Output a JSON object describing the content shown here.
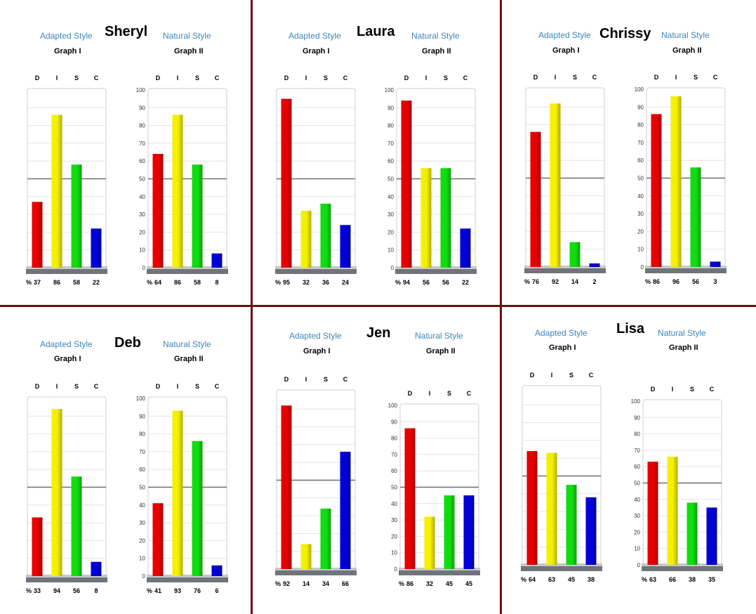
{
  "labels": {
    "adapted": "Adapted Style",
    "natural": "Natural Style",
    "graph1": "Graph I",
    "graph2": "Graph II",
    "percent": "%"
  },
  "colors": {
    "D": "#e80000",
    "I": "#f5ef00",
    "S": "#10dd10",
    "C": "#0000d8",
    "accent": "#3d86b8",
    "divider": "#6b0f0f"
  },
  "panels": [
    {
      "name": "Sheryl"
    },
    {
      "name": "Laura"
    },
    {
      "name": "Chrissy"
    },
    {
      "name": "Deb"
    },
    {
      "name": "Jen"
    },
    {
      "name": "Lisa"
    }
  ],
  "chart_data": [
    {
      "type": "bar",
      "person": "Sheryl",
      "title": "Adapted Style",
      "subtitle": "Graph I",
      "categories": [
        "D",
        "I",
        "S",
        "C"
      ],
      "values": [
        37,
        86,
        58,
        22
      ],
      "ylim": [
        0,
        100
      ],
      "midline": 50,
      "yticks_shown": false
    },
    {
      "type": "bar",
      "person": "Sheryl",
      "title": "Natural Style",
      "subtitle": "Graph II",
      "categories": [
        "D",
        "I",
        "S",
        "C"
      ],
      "values": [
        64,
        86,
        58,
        8
      ],
      "ylim": [
        0,
        100
      ],
      "midline": 50,
      "yticks_shown": true,
      "yticks": [
        "0",
        "10",
        "20",
        "30",
        "40",
        "50",
        "60",
        "70",
        "80",
        "90",
        "100"
      ]
    },
    {
      "type": "bar",
      "person": "Laura",
      "title": "Adapted Style",
      "subtitle": "Graph I",
      "categories": [
        "D",
        "I",
        "S",
        "C"
      ],
      "values": [
        95,
        32,
        36,
        24
      ],
      "ylim": [
        0,
        100
      ],
      "midline": 50,
      "yticks_shown": false
    },
    {
      "type": "bar",
      "person": "Laura",
      "title": "Natural Style",
      "subtitle": "Graph II",
      "categories": [
        "D",
        "I",
        "S",
        "C"
      ],
      "values": [
        94,
        56,
        56,
        22
      ],
      "ylim": [
        0,
        100
      ],
      "midline": 50,
      "yticks_shown": true,
      "yticks": [
        "0",
        "10",
        "20",
        "30",
        "40",
        "50",
        "60",
        "70",
        "80",
        "90",
        "100"
      ]
    },
    {
      "type": "bar",
      "person": "Chrissy",
      "title": "Adapted Style",
      "subtitle": "Graph I",
      "categories": [
        "D",
        "I",
        "S",
        "C"
      ],
      "values": [
        76,
        92,
        14,
        2
      ],
      "ylim": [
        0,
        100
      ],
      "midline": 50,
      "yticks_shown": false
    },
    {
      "type": "bar",
      "person": "Chrissy",
      "title": "Natural Style",
      "subtitle": "Graph II",
      "categories": [
        "D",
        "I",
        "S",
        "C"
      ],
      "values": [
        86,
        96,
        56,
        3
      ],
      "ylim": [
        0,
        100
      ],
      "midline": 50,
      "yticks_shown": true,
      "yticks": [
        "0",
        "10",
        "20",
        "30",
        "40",
        "50",
        "60",
        "70",
        "80",
        "90",
        "100"
      ]
    },
    {
      "type": "bar",
      "person": "Deb",
      "title": "Adapted Style",
      "subtitle": "Graph I",
      "categories": [
        "D",
        "I",
        "S",
        "C"
      ],
      "values": [
        33,
        94,
        56,
        8
      ],
      "ylim": [
        0,
        100
      ],
      "midline": 50,
      "yticks_shown": false
    },
    {
      "type": "bar",
      "person": "Deb",
      "title": "Natural Style",
      "subtitle": "Graph II",
      "categories": [
        "D",
        "I",
        "S",
        "C"
      ],
      "values": [
        41,
        93,
        76,
        6
      ],
      "ylim": [
        0,
        100
      ],
      "midline": 50,
      "yticks_shown": true,
      "yticks": [
        "0",
        "10",
        "20",
        "30",
        "40",
        "50",
        "60",
        "70",
        "80",
        "90",
        "100"
      ]
    },
    {
      "type": "bar",
      "person": "Jen",
      "title": "Adapted Style",
      "subtitle": "Graph I",
      "categories": [
        "D",
        "I",
        "S",
        "C"
      ],
      "values": [
        92,
        14,
        34,
        66
      ],
      "ylim": [
        0,
        100
      ],
      "midline": 50,
      "yticks_shown": false
    },
    {
      "type": "bar",
      "person": "Jen",
      "title": "Natural Style",
      "subtitle": "Graph II",
      "categories": [
        "D",
        "I",
        "S",
        "C"
      ],
      "values": [
        86,
        32,
        45,
        45
      ],
      "ylim": [
        0,
        100
      ],
      "midline": 50,
      "yticks_shown": true,
      "yticks": [
        "0",
        "10",
        "20",
        "30",
        "40",
        "50",
        "60",
        "70",
        "80",
        "90",
        "100"
      ]
    },
    {
      "type": "bar",
      "person": "Lisa",
      "title": "Adapted Style",
      "subtitle": "Graph I",
      "categories": [
        "D",
        "I",
        "S",
        "C"
      ],
      "values": [
        64,
        63,
        45,
        38
      ],
      "ylim": [
        0,
        100
      ],
      "midline": 50,
      "yticks_shown": false
    },
    {
      "type": "bar",
      "person": "Lisa",
      "title": "Natural Style",
      "subtitle": "Graph II",
      "categories": [
        "D",
        "I",
        "S",
        "C"
      ],
      "values": [
        63,
        66,
        38,
        35
      ],
      "ylim": [
        0,
        100
      ],
      "midline": 50,
      "yticks_shown": true,
      "yticks": [
        "0",
        "10",
        "20",
        "30",
        "40",
        "50",
        "60",
        "70",
        "80",
        "90",
        "100"
      ]
    }
  ]
}
